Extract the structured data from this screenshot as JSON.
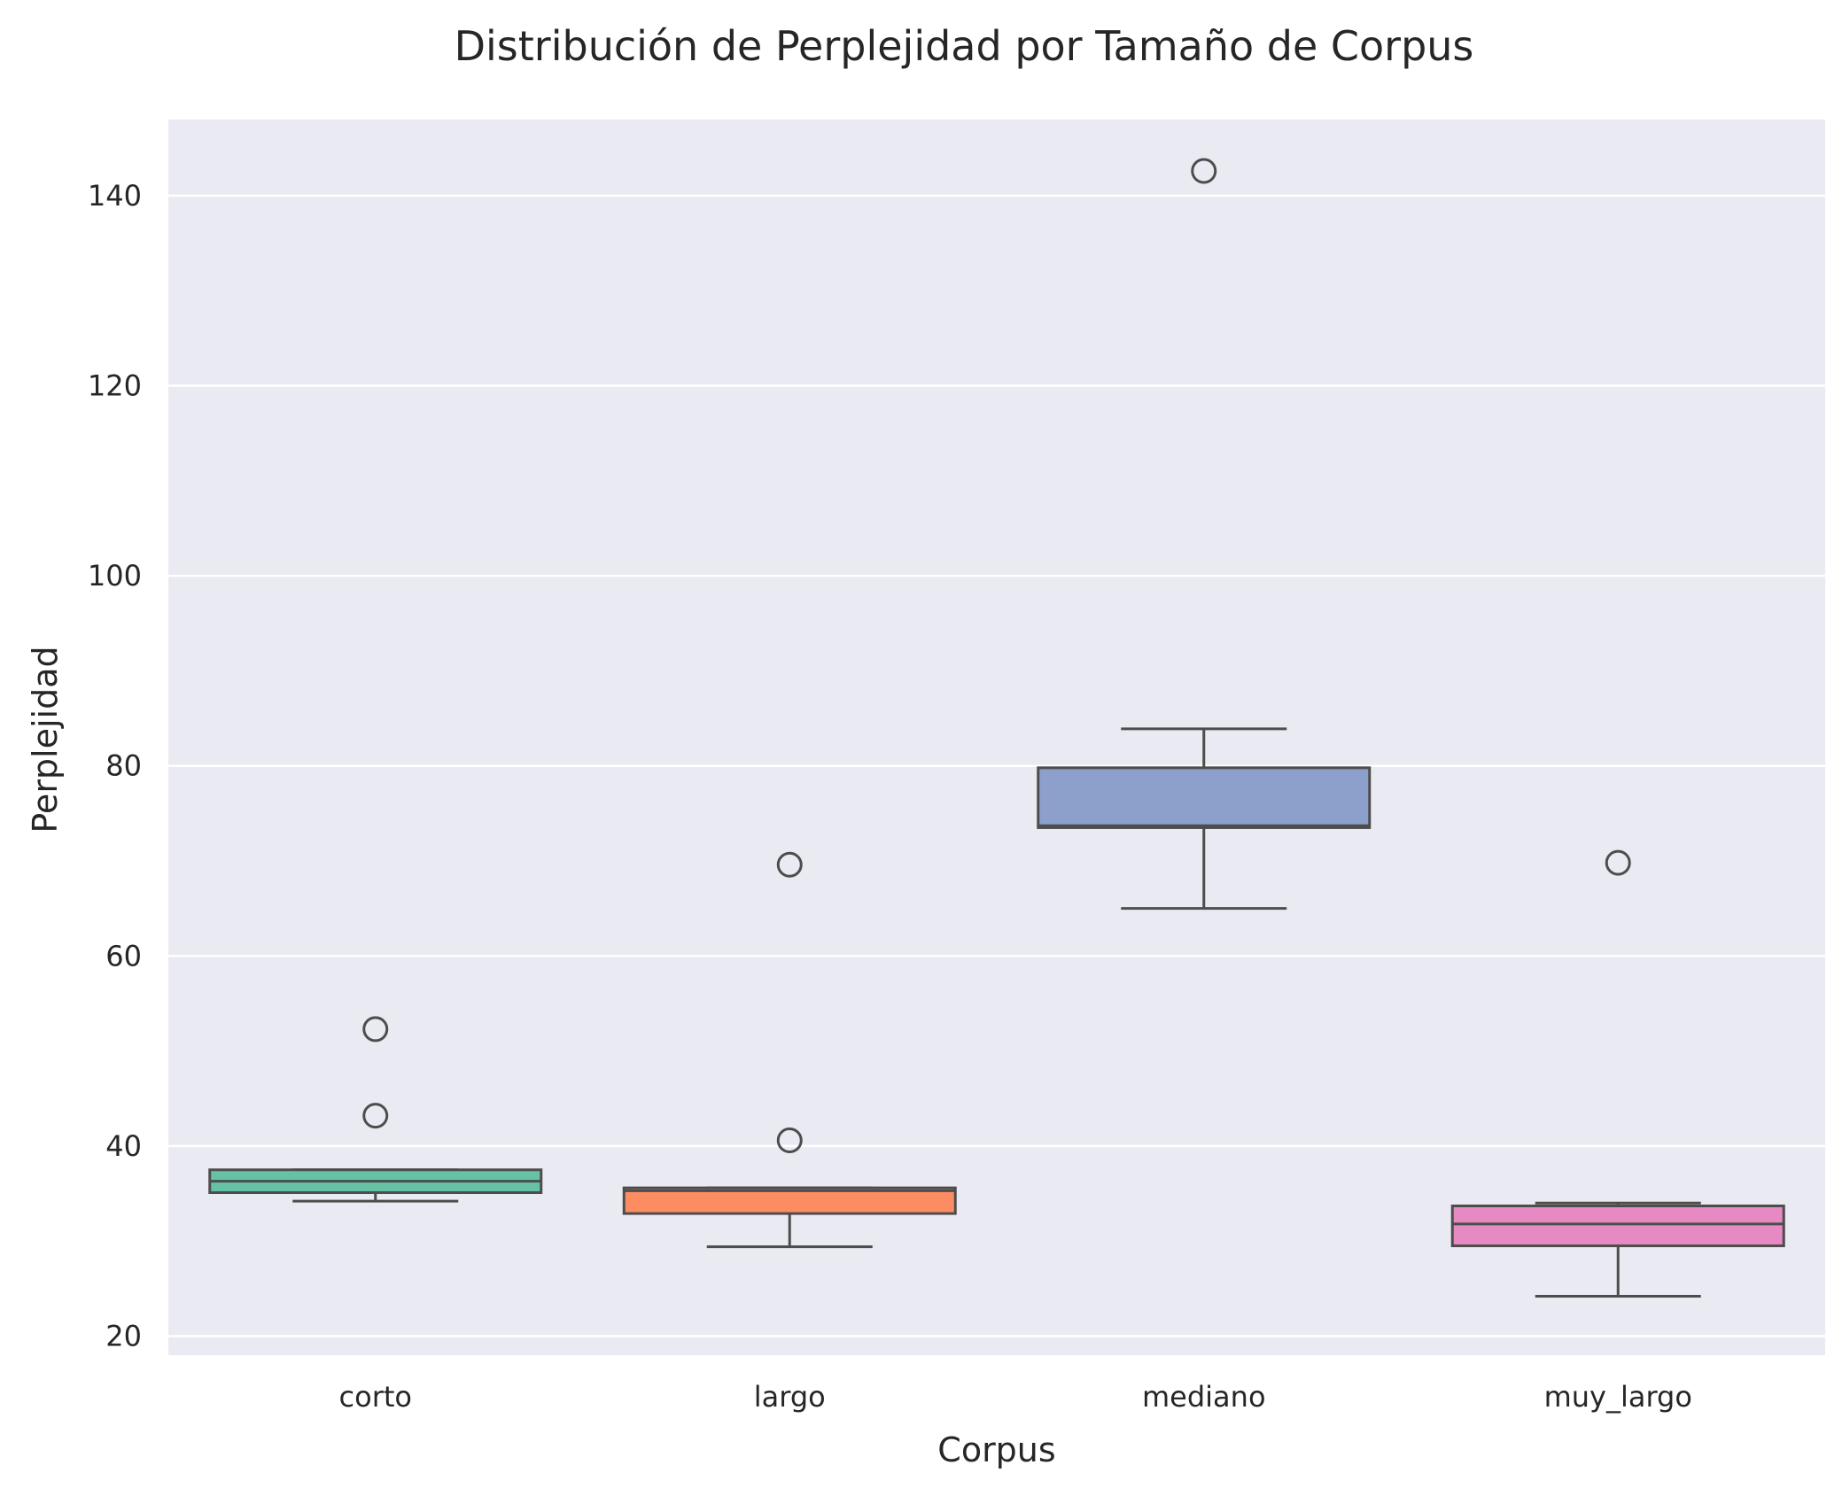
{
  "chart_data": {
    "type": "box",
    "title": "Distribución de Perplejidad por Tamaño de Corpus",
    "xlabel": "Corpus",
    "ylabel": "Perplejidad",
    "ylim": [
      18,
      148
    ],
    "yticks": [
      20,
      40,
      60,
      80,
      100,
      120,
      140
    ],
    "grid": true,
    "legend": "none",
    "categories": [
      "corto",
      "largo",
      "mediano",
      "muy_largo"
    ],
    "boxes": [
      {
        "category": "corto",
        "whisker_low": 34.2,
        "q1": 35.1,
        "median": 36.3,
        "q3": 37.5,
        "whisker_high": 37.5,
        "outliers": [
          43.2,
          52.3
        ],
        "color": "#66c2a5"
      },
      {
        "category": "largo",
        "whisker_low": 29.4,
        "q1": 32.9,
        "median": 35.3,
        "q3": 35.6,
        "whisker_high": 35.6,
        "outliers": [
          40.6,
          69.6
        ],
        "color": "#fc8d62"
      },
      {
        "category": "mediano",
        "whisker_low": 65.0,
        "q1": 73.5,
        "median": 73.7,
        "q3": 79.8,
        "whisker_high": 83.9,
        "outliers": [
          142.6
        ],
        "color": "#8da0cb"
      },
      {
        "category": "muy_largo",
        "whisker_low": 24.2,
        "q1": 29.5,
        "median": 31.8,
        "q3": 33.7,
        "whisker_high": 34.0,
        "outliers": [
          69.8
        ],
        "color": "#e78ac3"
      }
    ],
    "colors": {
      "background": "#eaeaf2",
      "grid": "#ffffff",
      "line": "#4d4d4d",
      "text": "#262626"
    }
  }
}
